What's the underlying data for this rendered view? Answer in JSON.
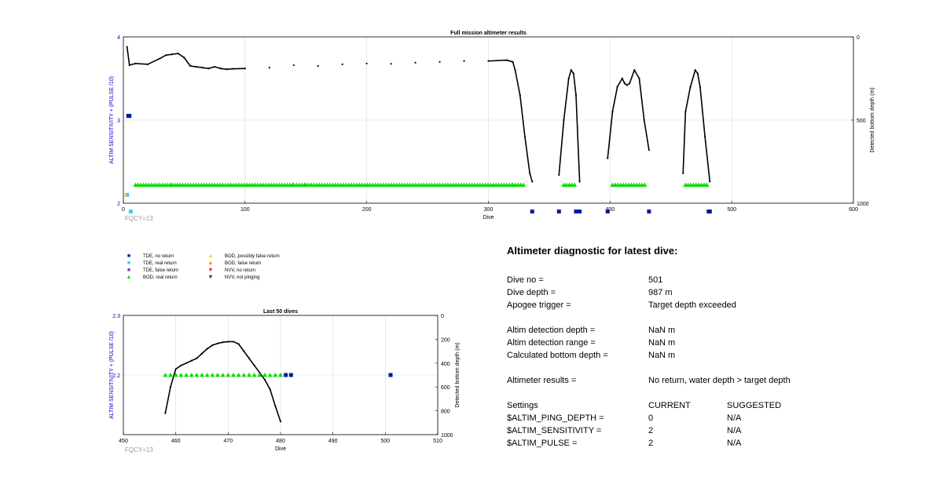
{
  "chart_data": [
    {
      "type": "line",
      "title": "Full mission altimeter results",
      "xlabel": "Dive",
      "ylabel": "ALTIM SENSITIVITY + (PULSE /10)",
      "y2label": "Detected bottom depth (m)",
      "xlim": [
        0,
        600
      ],
      "ylim": [
        2,
        4
      ],
      "y2lim": [
        1000,
        0
      ],
      "xticks": [
        "0",
        "100",
        "200",
        "300",
        "400",
        "500",
        "600"
      ],
      "yticks": [
        "2",
        "3",
        "4"
      ],
      "y2ticks": [
        "0",
        "500",
        "1000"
      ],
      "grid": true,
      "annotation": "FQCY=13",
      "series": [
        {
          "kind": "bottom_depth_line",
          "axis": "right",
          "x": [
            3,
            5,
            10,
            20,
            30,
            35,
            40,
            45,
            50,
            55,
            60,
            65,
            70,
            75,
            80,
            85,
            90,
            100,
            120,
            140,
            160,
            180,
            200,
            220,
            240,
            260,
            280,
            300,
            315,
            320,
            322,
            326,
            330,
            334,
            336,
            358,
            362,
            366,
            368,
            370,
            372,
            375,
            398,
            402,
            406,
            410,
            412,
            414,
            416,
            420,
            424,
            428,
            432,
            460,
            462,
            466,
            470,
            472,
            474,
            478,
            482
          ],
          "y": [
            60,
            170,
            160,
            165,
            130,
            110,
            105,
            100,
            125,
            175,
            180,
            185,
            190,
            180,
            190,
            195,
            192,
            190,
            185,
            170,
            175,
            165,
            160,
            162,
            155,
            150,
            145,
            145,
            140,
            150,
            200,
            350,
            600,
            820,
            870,
            830,
            500,
            250,
            200,
            220,
            350,
            870,
            730,
            450,
            300,
            250,
            280,
            290,
            280,
            200,
            250,
            500,
            680,
            820,
            450,
            300,
            200,
            220,
            300,
            600,
            870
          ]
        },
        {
          "kind": "BOD, real return",
          "marker": "triangle",
          "color": "#00dd00",
          "depth": 890,
          "ranges": [
            [
              10,
              40
            ],
            [
              40,
              140
            ],
            [
              140,
              150
            ],
            [
              150,
              320
            ],
            [
              320,
              330
            ],
            [
              362,
              372
            ],
            [
              402,
              430
            ],
            [
              462,
              480
            ]
          ]
        },
        {
          "kind": "TDE, no return",
          "marker": "square",
          "color": "#001a9b",
          "points": [
            [
              4,
              3.05
            ],
            [
              5,
              3.05
            ],
            [
              336,
              1.9
            ],
            [
              358,
              1.9
            ],
            [
              372,
              1.9
            ],
            [
              375,
              1.9
            ],
            [
              398,
              1.9
            ],
            [
              432,
              1.9
            ],
            [
              481,
              1.9
            ],
            [
              482,
              1.9
            ]
          ]
        },
        {
          "kind": "TDE, real return",
          "marker": "square",
          "color": "#33ccff",
          "points": [
            [
              6,
              1.9
            ],
            [
              3,
              2.1
            ]
          ]
        },
        {
          "kind": "BOD, possibly false return",
          "marker": "triangle",
          "color": "#ffcc00",
          "points": [
            [
              2,
              2.1
            ]
          ]
        }
      ]
    },
    {
      "type": "line",
      "title": "Last 50 dives",
      "xlabel": "Dive",
      "ylabel": "ALTIM SENSITIVITY + (PULSE /10)",
      "y2label": "Detected bottom depth (m)",
      "xlim": [
        450,
        510
      ],
      "ylim": [
        2.1,
        2.3
      ],
      "y2lim": [
        1000,
        0
      ],
      "xticks": [
        "450",
        "460",
        "470",
        "480",
        "490",
        "500",
        "510"
      ],
      "yticks": [
        "2.2",
        "2.3"
      ],
      "y2ticks": [
        "0",
        "200",
        "400",
        "600",
        "800",
        "1000"
      ],
      "grid": true,
      "annotation": "FQCY=13",
      "series": [
        {
          "kind": "bottom_depth_line",
          "axis": "right",
          "x": [
            458,
            459,
            460,
            461,
            462,
            463,
            464,
            465,
            466,
            467,
            468,
            469,
            470,
            471,
            472,
            473,
            474,
            475,
            476,
            477,
            478,
            479,
            480
          ],
          "y": [
            820,
            600,
            450,
            420,
            400,
            380,
            360,
            320,
            280,
            250,
            235,
            225,
            220,
            220,
            240,
            300,
            360,
            420,
            480,
            540,
            620,
            760,
            890
          ]
        },
        {
          "kind": "BOD, real return",
          "marker": "triangle",
          "color": "#00dd00",
          "x": [
            458,
            459,
            460,
            461,
            462,
            463,
            464,
            465,
            466,
            467,
            468,
            469,
            470,
            471,
            472,
            473,
            474,
            475,
            476,
            477,
            478,
            479,
            480
          ],
          "y": 2.2
        },
        {
          "kind": "TDE, no return",
          "marker": "square",
          "color": "#001a9b",
          "x": [
            481,
            482,
            501
          ],
          "y": 2.2
        }
      ]
    }
  ],
  "legend": [
    {
      "label": "TDE, no return",
      "symbol": "■",
      "color": "#001a9b"
    },
    {
      "label": "TDE, real return",
      "symbol": "■",
      "color": "#33ccff"
    },
    {
      "label": "TDE, false return",
      "symbol": "■",
      "color": "#7a3fbf"
    },
    {
      "label": "BOD, real return",
      "symbol": "▲",
      "color": "#00dd00"
    },
    {
      "label": "BOD, possibly false return",
      "symbol": "▲",
      "color": "#ffcc00"
    },
    {
      "label": "BOD, false return",
      "symbol": "▲",
      "color": "#ff8800"
    },
    {
      "label": "NVV, no return",
      "symbol": "▼",
      "color": "#cc2200"
    },
    {
      "label": "NVV, not pinging",
      "symbol": "▼",
      "color": "#6b0000"
    }
  ],
  "diagnostic": {
    "heading": "Altimeter diagnostic for latest dive:",
    "dive_no_label": "Dive no =",
    "dive_no_value": "501",
    "dive_depth_label": "Dive depth =",
    "dive_depth_value": "987 m",
    "apogee_label": "Apogee trigger =",
    "apogee_value": "Target depth exceeded",
    "altim_detect_depth_label": "Altim detection depth =",
    "altim_detect_depth_value": "NaN m",
    "altim_detect_range_label": "Altim detection range =",
    "altim_detect_range_value": "NaN m",
    "calc_bottom_label": "Calculated bottom depth =",
    "calc_bottom_value": "NaN m",
    "results_label": "Altimeter results =",
    "results_value": "No return, water depth > target depth",
    "settings_label": "Settings",
    "current_label": "CURRENT",
    "suggested_label": "SUGGESTED",
    "settings": [
      {
        "name": "$ALTIM_PING_DEPTH =",
        "current": "0",
        "suggested": "N/A"
      },
      {
        "name": "$ALTIM_SENSITIVITY =",
        "current": "2",
        "suggested": "N/A"
      },
      {
        "name": "$ALTIM_PULSE =",
        "current": "2",
        "suggested": "N/A"
      }
    ]
  },
  "colors": {
    "axis_left": "#0000cc",
    "line": "#000000",
    "grid": "#dcdcdc",
    "annotation": "#999999"
  }
}
